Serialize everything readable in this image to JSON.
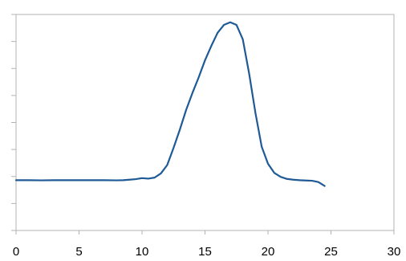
{
  "chart_data": {
    "type": "line",
    "title": "",
    "xlabel": "",
    "ylabel": "",
    "xlim": [
      0,
      30
    ],
    "x_ticks": [
      0,
      5,
      10,
      15,
      20,
      25,
      30
    ],
    "x_tick_labels": [
      "0",
      "5",
      "10",
      "15",
      "20",
      "25",
      "30"
    ],
    "y_tick_count": 8,
    "y_tick_labels_visible": false,
    "grid": false,
    "legend": "none",
    "colors": {
      "line": "#1f5a96",
      "axis": "#b3b3b3",
      "frame": "#b3b3b3",
      "background": "#ffffff"
    },
    "series": [
      {
        "x": [
          0.0,
          1.0,
          2.0,
          3.0,
          4.0,
          5.0,
          6.0,
          7.0,
          8.0,
          8.5,
          9.0,
          9.5,
          10.0,
          10.5,
          11.0,
          11.5,
          12.0,
          12.5,
          13.0,
          13.5,
          14.0,
          14.5,
          15.0,
          15.5,
          16.0,
          16.5,
          17.0,
          17.5,
          18.0,
          18.5,
          19.0,
          19.5,
          20.0,
          20.5,
          21.0,
          21.5,
          22.0,
          22.5,
          23.0,
          23.5,
          24.0,
          24.5
        ],
        "y": [
          0.02,
          0.02,
          0.015,
          0.02,
          0.02,
          0.02,
          0.02,
          0.02,
          0.015,
          0.02,
          0.04,
          0.06,
          0.1,
          0.08,
          0.12,
          0.28,
          0.6,
          1.25,
          1.95,
          2.7,
          3.35,
          3.95,
          4.6,
          5.15,
          5.65,
          5.95,
          6.05,
          5.95,
          5.4,
          4.1,
          2.6,
          1.3,
          0.65,
          0.3,
          0.15,
          0.07,
          0.04,
          0.02,
          0.01,
          0.0,
          -0.05,
          -0.2
        ]
      }
    ]
  }
}
